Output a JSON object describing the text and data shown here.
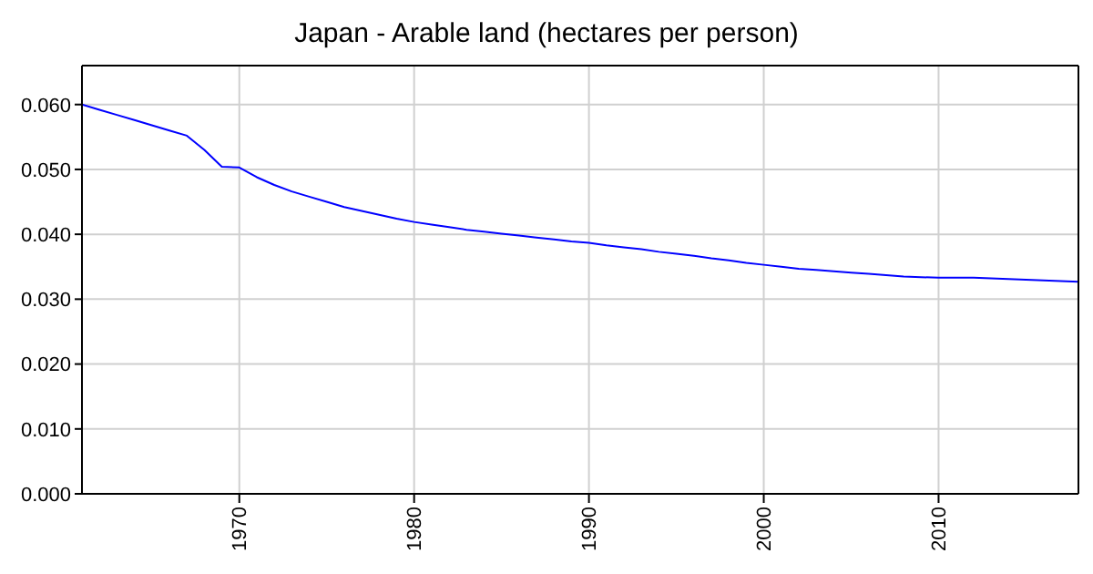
{
  "chart_data": {
    "type": "line",
    "title": "Japan - Arable land (hectares per person)",
    "x": [
      1961,
      1962,
      1963,
      1964,
      1965,
      1966,
      1967,
      1968,
      1969,
      1970,
      1971,
      1972,
      1973,
      1974,
      1975,
      1976,
      1977,
      1978,
      1979,
      1980,
      1981,
      1982,
      1983,
      1984,
      1985,
      1986,
      1987,
      1988,
      1989,
      1990,
      1991,
      1992,
      1993,
      1994,
      1995,
      1996,
      1997,
      1998,
      1999,
      2000,
      2001,
      2002,
      2003,
      2004,
      2005,
      2006,
      2007,
      2008,
      2009,
      2010,
      2011,
      2012,
      2013,
      2014,
      2015,
      2016,
      2017,
      2018
    ],
    "series": [
      {
        "color": "#0000ff",
        "values": [
          0.06,
          0.0592,
          0.0584,
          0.0576,
          0.0568,
          0.056,
          0.0552,
          0.053,
          0.0504,
          0.0503,
          0.0488,
          0.0476,
          0.0466,
          0.0458,
          0.045,
          0.0442,
          0.0436,
          0.043,
          0.0424,
          0.0419,
          0.0415,
          0.0411,
          0.0407,
          0.0404,
          0.0401,
          0.0398,
          0.0395,
          0.0392,
          0.0389,
          0.0387,
          0.0383,
          0.038,
          0.0377,
          0.0373,
          0.037,
          0.0367,
          0.0363,
          0.036,
          0.0356,
          0.0353,
          0.035,
          0.0347,
          0.0345,
          0.0343,
          0.0341,
          0.0339,
          0.0337,
          0.0335,
          0.0334,
          0.0333,
          0.0333,
          0.0333,
          0.0332,
          0.0331,
          0.033,
          0.0329,
          0.0328,
          0.0327
        ]
      }
    ],
    "xlim": [
      1961,
      2018
    ],
    "xticks": [
      1970,
      1980,
      1990,
      2000,
      2010
    ],
    "ylim": [
      0,
      0.066
    ],
    "yticks": [
      {
        "value": 0,
        "label": "0.000"
      },
      {
        "value": 0.01,
        "label": "0.010"
      },
      {
        "value": 0.02,
        "label": "0.020"
      },
      {
        "value": 0.03,
        "label": "0.030"
      },
      {
        "value": 0.04,
        "label": "0.040"
      },
      {
        "value": 0.05,
        "label": "0.050"
      },
      {
        "value": 0.06,
        "label": "0.060"
      }
    ],
    "grid": true,
    "legend": false,
    "marker": "none",
    "line_style": "solid"
  }
}
